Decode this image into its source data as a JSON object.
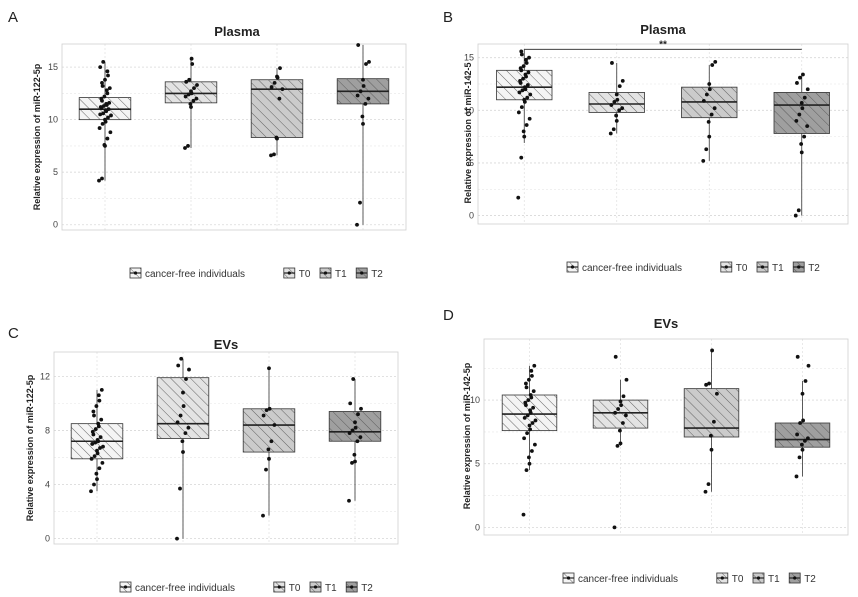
{
  "legend_labels": [
    "cancer-free individuals",
    "T0",
    "T1",
    "T2"
  ],
  "box_fills": [
    "#f4f4f4",
    "#e3e3e3",
    "#cbcbcb",
    "#9f9f9f"
  ],
  "chart_data": [
    {
      "type": "box",
      "panel": "A",
      "title": "Plasma",
      "xlabel": "",
      "ylabel": "Relative expression of  miR-122-5p",
      "ylim": [
        -0.5,
        17.2
      ],
      "yticks": [
        0,
        5,
        10,
        15
      ],
      "categories": [
        "cancer-free individuals",
        "T0",
        "T1",
        "T2"
      ],
      "boxes": [
        {
          "whisker_low": 4.2,
          "q1": 10.0,
          "median": 11.0,
          "q3": 12.1,
          "whisker_high": 15.5
        },
        {
          "whisker_low": 7.3,
          "q1": 11.6,
          "median": 12.5,
          "q3": 13.6,
          "whisker_high": 15.8
        },
        {
          "whisker_low": 6.6,
          "q1": 8.3,
          "median": 12.9,
          "q3": 13.8,
          "whisker_high": 14.9
        },
        {
          "whisker_low": 0.0,
          "q1": 11.5,
          "median": 12.7,
          "q3": 13.9,
          "whisker_high": 17.1
        }
      ],
      "points": [
        [
          4.2,
          4.4,
          7.5,
          7.6,
          8.2,
          8.8,
          9.2,
          9.6,
          9.8,
          10.0,
          10.2,
          10.4,
          10.5,
          10.6,
          10.8,
          10.9,
          11.0,
          11.1,
          11.2,
          11.3,
          11.4,
          11.5,
          11.6,
          11.8,
          12.0,
          12.2,
          12.5,
          12.8,
          13.0,
          13.2,
          13.5,
          13.8,
          14.2,
          14.6,
          15.0,
          15.5
        ],
        [
          7.3,
          7.5,
          11.2,
          11.5,
          11.8,
          12.0,
          12.2,
          12.4,
          12.5,
          12.7,
          13.0,
          13.3,
          13.6,
          13.8,
          15.3,
          15.8
        ],
        [
          6.6,
          6.7,
          8.2,
          8.3,
          12.0,
          12.9,
          13.1,
          13.5,
          14.0,
          14.1,
          14.9
        ],
        [
          0.0,
          2.1,
          9.6,
          10.3,
          11.5,
          12.0,
          12.3,
          12.7,
          13.2,
          13.8,
          15.3,
          15.5,
          17.1
        ]
      ]
    },
    {
      "type": "box",
      "panel": "B",
      "title": "Plasma",
      "xlabel": "",
      "ylabel": "Relative expression of  miR-142-5",
      "ylim": [
        -0.8,
        16.3
      ],
      "yticks": [
        0,
        5,
        10,
        15
      ],
      "categories": [
        "cancer-free individuals",
        "T0",
        "T1",
        "T2"
      ],
      "significance": {
        "label": "**",
        "from": 0,
        "to": 3,
        "y": 15.8
      },
      "boxes": [
        {
          "whisker_low": 6.9,
          "q1": 11.0,
          "median": 12.2,
          "q3": 13.8,
          "whisker_high": 15.8
        },
        {
          "whisker_low": 7.8,
          "q1": 9.8,
          "median": 10.6,
          "q3": 11.7,
          "whisker_high": 14.5
        },
        {
          "whisker_low": 5.2,
          "q1": 9.3,
          "median": 10.8,
          "q3": 12.2,
          "whisker_high": 14.3
        },
        {
          "whisker_low": 0.0,
          "q1": 7.8,
          "median": 10.5,
          "q3": 11.7,
          "whisker_high": 13.4
        }
      ],
      "points": [
        [
          1.7,
          5.5,
          7.5,
          8.0,
          8.6,
          9.2,
          9.8,
          10.3,
          10.8,
          11.0,
          11.2,
          11.5,
          11.7,
          11.9,
          12.0,
          12.2,
          12.4,
          12.6,
          12.8,
          13.0,
          13.2,
          13.4,
          13.6,
          13.8,
          14.0,
          14.2,
          14.5,
          14.8,
          15.0,
          15.3,
          15.6
        ],
        [
          7.8,
          8.2,
          9.0,
          9.5,
          10.0,
          10.2,
          10.5,
          10.8,
          11.0,
          11.5,
          12.3,
          12.8,
          14.5
        ],
        [
          5.2,
          6.3,
          7.5,
          8.9,
          9.6,
          10.2,
          10.9,
          11.5,
          12.0,
          12.5,
          14.3,
          14.6
        ],
        [
          0.0,
          0.5,
          6.0,
          6.8,
          7.5,
          8.5,
          9.0,
          9.6,
          10.2,
          10.7,
          11.2,
          12.0,
          12.6,
          13.1,
          13.4
        ]
      ]
    },
    {
      "type": "box",
      "panel": "C",
      "title": "EVs",
      "xlabel": "",
      "ylabel": "Relative expression of  miR-122-5p",
      "ylim": [
        -0.4,
        13.8
      ],
      "yticks": [
        0,
        4,
        8,
        12
      ],
      "categories": [
        "cancer-free individuals",
        "T0",
        "T1",
        "T2"
      ],
      "boxes": [
        {
          "whisker_low": 3.5,
          "q1": 5.9,
          "median": 7.2,
          "q3": 8.5,
          "whisker_high": 11.0
        },
        {
          "whisker_low": 0.0,
          "q1": 7.4,
          "median": 8.5,
          "q3": 11.9,
          "whisker_high": 13.3
        },
        {
          "whisker_low": 1.7,
          "q1": 6.4,
          "median": 8.4,
          "q3": 9.6,
          "whisker_high": 12.6
        },
        {
          "whisker_low": 2.8,
          "q1": 7.2,
          "median": 7.9,
          "q3": 9.4,
          "whisker_high": 11.8
        }
      ],
      "points": [
        [
          3.5,
          4.0,
          4.4,
          4.8,
          5.2,
          5.6,
          5.9,
          6.1,
          6.3,
          6.5,
          6.7,
          6.8,
          7.0,
          7.1,
          7.2,
          7.3,
          7.5,
          7.7,
          7.9,
          8.1,
          8.3,
          8.5,
          8.8,
          9.1,
          9.4,
          9.8,
          10.2,
          10.6,
          11.0
        ],
        [
          0.0,
          3.7,
          6.4,
          7.2,
          7.8,
          8.2,
          8.6,
          9.1,
          9.8,
          10.8,
          11.8,
          12.5,
          12.8,
          13.3
        ],
        [
          1.7,
          5.1,
          5.9,
          6.6,
          7.2,
          8.4,
          9.1,
          9.5,
          9.6,
          12.6
        ],
        [
          2.8,
          5.6,
          5.7,
          6.2,
          7.2,
          7.5,
          7.8,
          8.0,
          8.2,
          8.6,
          9.2,
          9.6,
          10.0,
          11.8
        ]
      ]
    },
    {
      "type": "box",
      "panel": "D",
      "title": "EVs",
      "xlabel": "",
      "ylabel": "Relative expression of  miR-142-5p",
      "ylim": [
        -0.6,
        14.8
      ],
      "yticks": [
        0,
        5,
        10
      ],
      "categories": [
        "cancer-free individuals",
        "T0",
        "T1",
        "T2"
      ],
      "boxes": [
        {
          "whisker_low": 4.5,
          "q1": 7.6,
          "median": 8.9,
          "q3": 10.4,
          "whisker_high": 12.7
        },
        {
          "whisker_low": 6.4,
          "q1": 7.8,
          "median": 9.0,
          "q3": 10.0,
          "whisker_high": 11.6
        },
        {
          "whisker_low": 2.8,
          "q1": 7.1,
          "median": 7.8,
          "q3": 10.9,
          "whisker_high": 13.9
        },
        {
          "whisker_low": 4.0,
          "q1": 6.3,
          "median": 6.9,
          "q3": 8.2,
          "whisker_high": 11.5
        }
      ],
      "points": [
        [
          1.0,
          4.5,
          5.0,
          5.5,
          6.0,
          6.5,
          7.0,
          7.4,
          7.7,
          8.0,
          8.2,
          8.4,
          8.6,
          8.8,
          9.0,
          9.2,
          9.4,
          9.6,
          9.8,
          10.0,
          10.2,
          10.4,
          10.7,
          11.0,
          11.3,
          11.6,
          11.9,
          12.3,
          12.7
        ],
        [
          0.0,
          6.4,
          6.6,
          7.6,
          8.2,
          8.8,
          9.0,
          9.3,
          9.6,
          9.9,
          10.3,
          11.6,
          13.4
        ],
        [
          2.8,
          3.4,
          6.1,
          7.2,
          8.3,
          10.5,
          11.2,
          11.3,
          13.9
        ],
        [
          4.0,
          5.5,
          6.1,
          6.5,
          6.8,
          7.0,
          7.3,
          8.2,
          8.4,
          10.5,
          11.5,
          12.7,
          13.4
        ]
      ]
    }
  ]
}
